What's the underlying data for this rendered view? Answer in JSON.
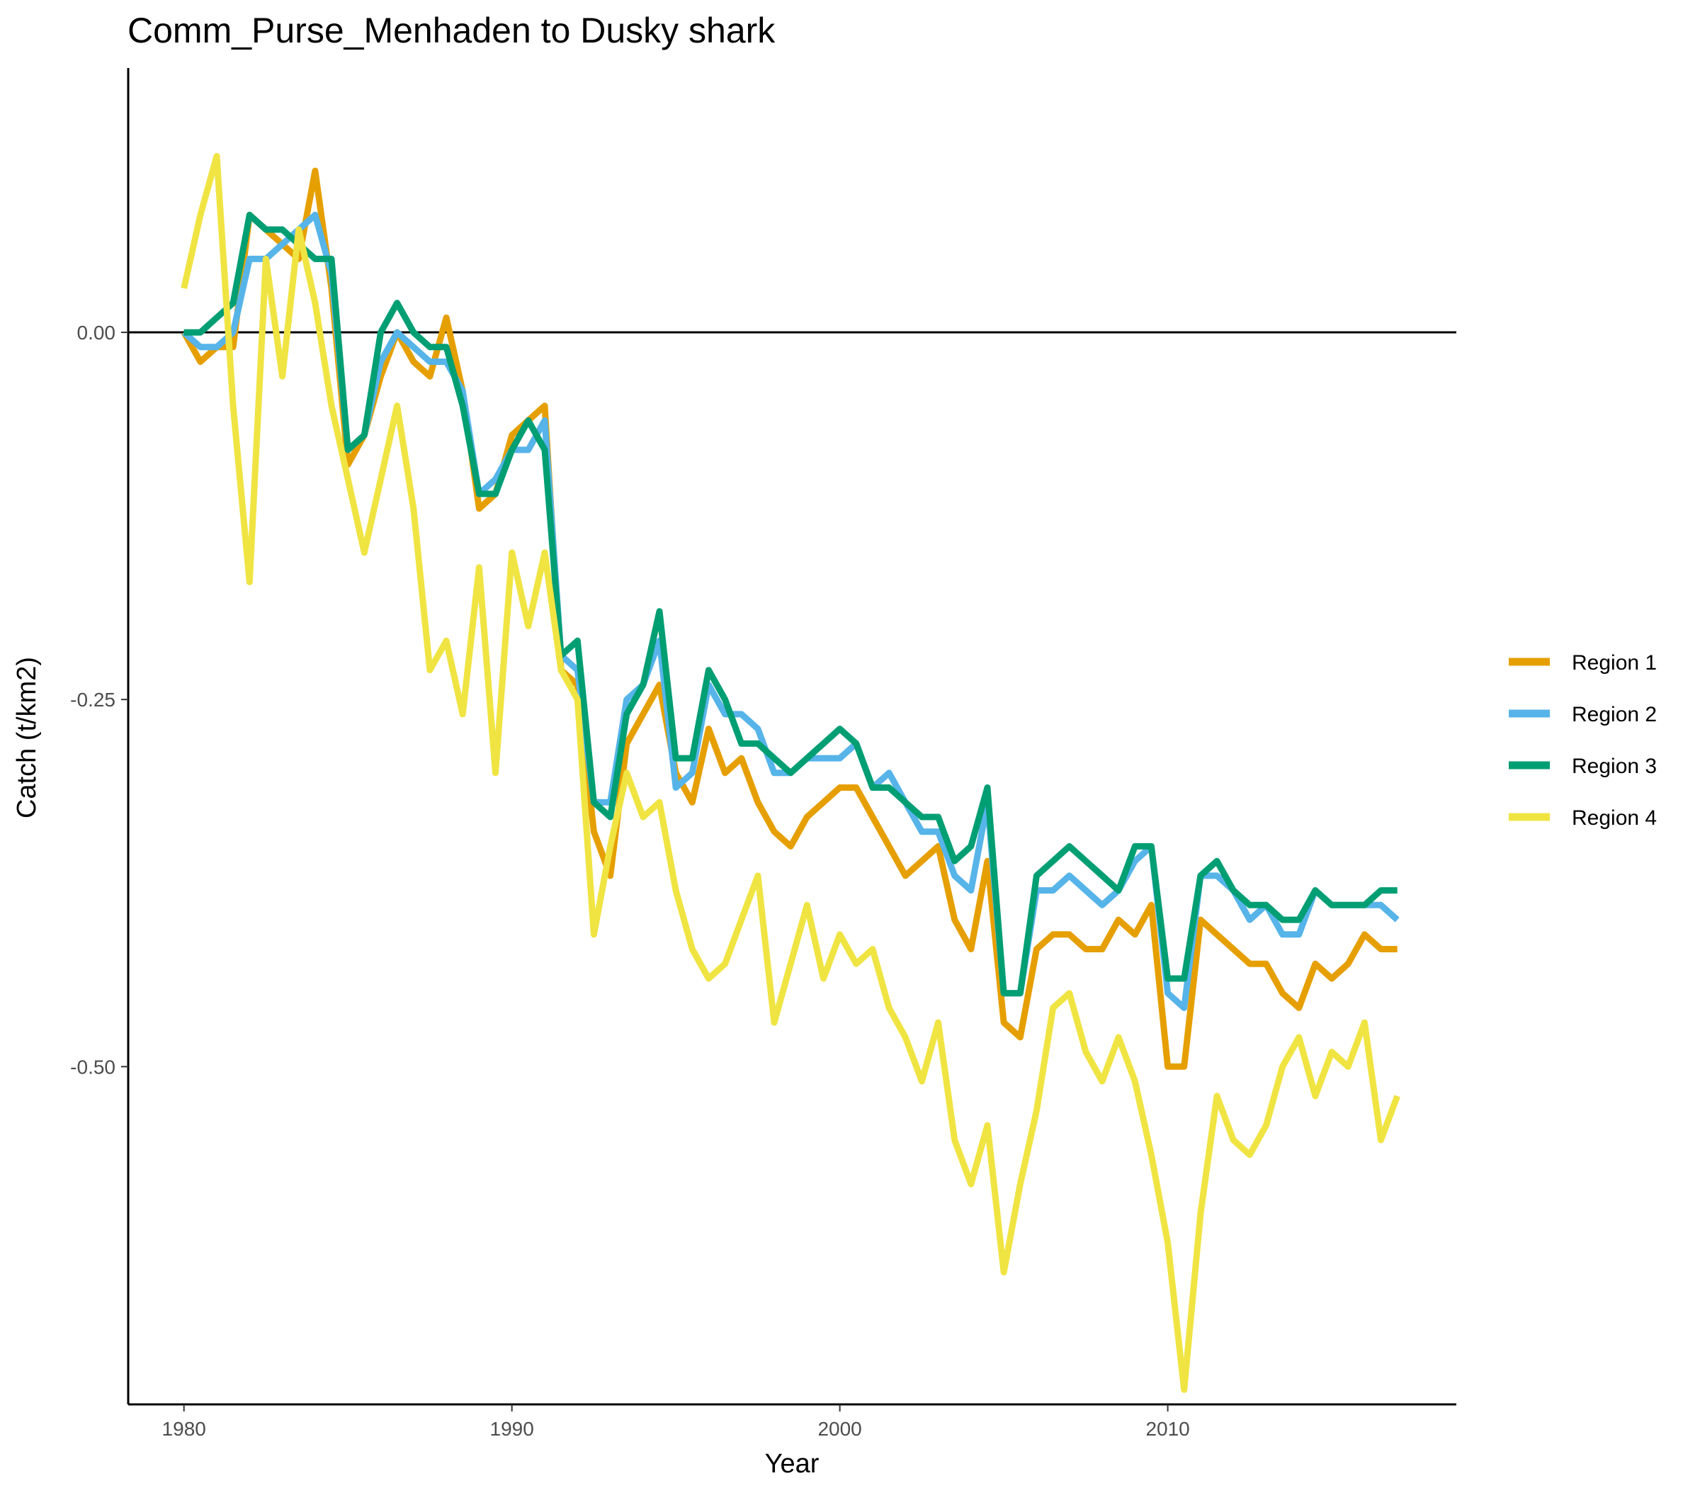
{
  "chart_data": {
    "type": "line",
    "title": "Comm_Purse_Menhaden to Dusky shark",
    "xlabel": "Year",
    "ylabel": "Catch (t/km2)",
    "xlim": [
      1978.3,
      2018.8
    ],
    "ylim": [
      -0.73,
      0.18
    ],
    "x_ticks": [
      1980,
      1990,
      2000,
      2010
    ],
    "x_tick_labels": [
      "1980",
      "1990",
      "2000",
      "2010"
    ],
    "y_ticks": [
      0,
      -0.25,
      -0.5
    ],
    "y_tick_labels": [
      "0.00",
      "-0.25",
      "-0.50"
    ],
    "reference_line_y": 0,
    "grid": false,
    "legend_position": "right",
    "series": [
      {
        "name": "Region 1",
        "color": "#E69F00",
        "x": [
          1980.0,
          1980.5,
          1981.0,
          1981.5,
          1982.0,
          1982.5,
          1983.0,
          1983.5,
          1984.0,
          1984.5,
          1985.0,
          1985.5,
          1986.0,
          1986.5,
          1987.0,
          1987.5,
          1988.0,
          1988.5,
          1989.0,
          1989.5,
          1990.0,
          1990.5,
          1991.0,
          1991.5,
          1992.0,
          1992.5,
          1993.0,
          1993.5,
          1994.0,
          1994.5,
          1995.0,
          1995.5,
          1996.0,
          1996.5,
          1997.0,
          1997.5,
          1998.0,
          1998.5,
          1999.0,
          1999.5,
          2000.0,
          2000.5,
          2001.0,
          2001.5,
          2002.0,
          2002.5,
          2003.0,
          2003.5,
          2004.0,
          2004.5,
          2005.0,
          2005.5,
          2006.0,
          2006.5,
          2007.0,
          2007.5,
          2008.0,
          2008.5,
          2009.0,
          2009.5,
          2010.0,
          2010.5,
          2011.0,
          2011.5,
          2012.0,
          2012.5,
          2013.0,
          2013.5,
          2014.0,
          2014.5,
          2015.0,
          2015.5,
          2016.0,
          2016.5,
          2017.0
        ],
        "y": [
          0.0,
          -0.02,
          -0.01,
          -0.01,
          0.08,
          0.07,
          0.06,
          0.05,
          0.11,
          0.03,
          -0.09,
          -0.07,
          -0.03,
          0.0,
          -0.02,
          -0.03,
          0.01,
          -0.04,
          -0.12,
          -0.11,
          -0.07,
          -0.06,
          -0.05,
          -0.23,
          -0.24,
          -0.34,
          -0.37,
          -0.28,
          -0.26,
          -0.24,
          -0.3,
          -0.32,
          -0.27,
          -0.3,
          -0.29,
          -0.32,
          -0.34,
          -0.35,
          -0.33,
          -0.32,
          -0.31,
          -0.31,
          -0.33,
          -0.35,
          -0.37,
          -0.36,
          -0.35,
          -0.4,
          -0.42,
          -0.36,
          -0.47,
          -0.48,
          -0.42,
          -0.41,
          -0.41,
          -0.42,
          -0.42,
          -0.4,
          -0.41,
          -0.39,
          -0.5,
          -0.5,
          -0.4,
          -0.41,
          -0.42,
          -0.43,
          -0.43,
          -0.45,
          -0.46,
          -0.43,
          -0.44,
          -0.43,
          -0.41,
          -0.42,
          -0.42
        ]
      },
      {
        "name": "Region 2",
        "color": "#56B4E9",
        "x": [
          1980.0,
          1980.5,
          1981.0,
          1981.5,
          1982.0,
          1982.5,
          1983.0,
          1983.5,
          1984.0,
          1984.5,
          1985.0,
          1985.5,
          1986.0,
          1986.5,
          1987.0,
          1987.5,
          1988.0,
          1988.5,
          1989.0,
          1989.5,
          1990.0,
          1990.5,
          1991.0,
          1991.5,
          1992.0,
          1992.5,
          1993.0,
          1993.5,
          1994.0,
          1994.5,
          1995.0,
          1995.5,
          1996.0,
          1996.5,
          1997.0,
          1997.5,
          1998.0,
          1998.5,
          1999.0,
          1999.5,
          2000.0,
          2000.5,
          2001.0,
          2001.5,
          2002.0,
          2002.5,
          2003.0,
          2003.5,
          2004.0,
          2004.5,
          2005.0,
          2005.5,
          2006.0,
          2006.5,
          2007.0,
          2007.5,
          2008.0,
          2008.5,
          2009.0,
          2009.5,
          2010.0,
          2010.5,
          2011.0,
          2011.5,
          2012.0,
          2012.5,
          2013.0,
          2013.5,
          2014.0,
          2014.5,
          2015.0,
          2015.5,
          2016.0,
          2016.5,
          2017.0
        ],
        "y": [
          0.0,
          -0.01,
          -0.01,
          0.0,
          0.05,
          0.05,
          0.06,
          0.07,
          0.08,
          0.04,
          -0.08,
          -0.07,
          -0.02,
          0.0,
          -0.01,
          -0.02,
          -0.02,
          -0.04,
          -0.11,
          -0.1,
          -0.08,
          -0.08,
          -0.06,
          -0.22,
          -0.23,
          -0.32,
          -0.32,
          -0.25,
          -0.24,
          -0.21,
          -0.31,
          -0.3,
          -0.24,
          -0.26,
          -0.26,
          -0.27,
          -0.3,
          -0.3,
          -0.29,
          -0.29,
          -0.29,
          -0.28,
          -0.31,
          -0.3,
          -0.32,
          -0.34,
          -0.34,
          -0.37,
          -0.38,
          -0.32,
          -0.45,
          -0.45,
          -0.38,
          -0.38,
          -0.37,
          -0.38,
          -0.39,
          -0.38,
          -0.36,
          -0.35,
          -0.45,
          -0.46,
          -0.37,
          -0.37,
          -0.38,
          -0.4,
          -0.39,
          -0.41,
          -0.41,
          -0.38,
          -0.39,
          -0.39,
          -0.39,
          -0.39,
          -0.4
        ]
      },
      {
        "name": "Region 3",
        "color": "#009E73",
        "x": [
          1980.0,
          1980.5,
          1981.0,
          1981.5,
          1982.0,
          1982.5,
          1983.0,
          1983.5,
          1984.0,
          1984.5,
          1985.0,
          1985.5,
          1986.0,
          1986.5,
          1987.0,
          1987.5,
          1988.0,
          1988.5,
          1989.0,
          1989.5,
          1990.0,
          1990.5,
          1991.0,
          1991.5,
          1992.0,
          1992.5,
          1993.0,
          1993.5,
          1994.0,
          1994.5,
          1995.0,
          1995.5,
          1996.0,
          1996.5,
          1997.0,
          1997.5,
          1998.0,
          1998.5,
          1999.0,
          1999.5,
          2000.0,
          2000.5,
          2001.0,
          2001.5,
          2002.0,
          2002.5,
          2003.0,
          2003.5,
          2004.0,
          2004.5,
          2005.0,
          2005.5,
          2006.0,
          2006.5,
          2007.0,
          2007.5,
          2008.0,
          2008.5,
          2009.0,
          2009.5,
          2010.0,
          2010.5,
          2011.0,
          2011.5,
          2012.0,
          2012.5,
          2013.0,
          2013.5,
          2014.0,
          2014.5,
          2015.0,
          2015.5,
          2016.0,
          2016.5,
          2017.0
        ],
        "y": [
          0.0,
          0.0,
          0.01,
          0.02,
          0.08,
          0.07,
          0.07,
          0.06,
          0.05,
          0.05,
          -0.08,
          -0.07,
          0.0,
          0.02,
          0.0,
          -0.01,
          -0.01,
          -0.05,
          -0.11,
          -0.11,
          -0.08,
          -0.06,
          -0.08,
          -0.22,
          -0.21,
          -0.32,
          -0.33,
          -0.26,
          -0.24,
          -0.19,
          -0.29,
          -0.29,
          -0.23,
          -0.25,
          -0.28,
          -0.28,
          -0.29,
          -0.3,
          -0.29,
          -0.28,
          -0.27,
          -0.28,
          -0.31,
          -0.31,
          -0.32,
          -0.33,
          -0.33,
          -0.36,
          -0.35,
          -0.31,
          -0.45,
          -0.45,
          -0.37,
          -0.36,
          -0.35,
          -0.36,
          -0.37,
          -0.38,
          -0.35,
          -0.35,
          -0.44,
          -0.44,
          -0.37,
          -0.36,
          -0.38,
          -0.39,
          -0.39,
          -0.4,
          -0.4,
          -0.38,
          -0.39,
          -0.39,
          -0.39,
          -0.38,
          -0.38
        ]
      },
      {
        "name": "Region 4",
        "color": "#F0E442",
        "x": [
          1980.0,
          1980.5,
          1981.0,
          1981.5,
          1982.0,
          1982.5,
          1983.0,
          1983.5,
          1984.0,
          1984.5,
          1985.0,
          1985.5,
          1986.0,
          1986.5,
          1987.0,
          1987.5,
          1988.0,
          1988.5,
          1989.0,
          1989.5,
          1990.0,
          1990.5,
          1991.0,
          1991.5,
          1992.0,
          1992.5,
          1993.0,
          1993.5,
          1994.0,
          1994.5,
          1995.0,
          1995.5,
          1996.0,
          1996.5,
          1997.0,
          1997.5,
          1998.0,
          1998.5,
          1999.0,
          1999.5,
          2000.0,
          2000.5,
          2001.0,
          2001.5,
          2002.0,
          2002.5,
          2003.0,
          2003.5,
          2004.0,
          2004.5,
          2005.0,
          2005.5,
          2006.0,
          2006.5,
          2007.0,
          2007.5,
          2008.0,
          2008.5,
          2009.0,
          2009.5,
          2010.0,
          2010.5,
          2011.0,
          2011.5,
          2012.0,
          2012.5,
          2013.0,
          2013.5,
          2014.0,
          2014.5,
          2015.0,
          2015.5,
          2016.0,
          2016.5,
          2017.0
        ],
        "y": [
          0.03,
          0.08,
          0.12,
          -0.05,
          -0.17,
          0.05,
          -0.03,
          0.07,
          0.02,
          -0.05,
          -0.1,
          -0.15,
          -0.1,
          -0.05,
          -0.12,
          -0.23,
          -0.21,
          -0.26,
          -0.16,
          -0.3,
          -0.15,
          -0.2,
          -0.15,
          -0.23,
          -0.25,
          -0.41,
          -0.35,
          -0.3,
          -0.33,
          -0.32,
          -0.38,
          -0.42,
          -0.44,
          -0.43,
          -0.4,
          -0.37,
          -0.47,
          -0.43,
          -0.39,
          -0.44,
          -0.41,
          -0.43,
          -0.42,
          -0.46,
          -0.48,
          -0.51,
          -0.47,
          -0.55,
          -0.58,
          -0.54,
          -0.64,
          -0.58,
          -0.53,
          -0.46,
          -0.45,
          -0.49,
          -0.51,
          -0.48,
          -0.51,
          -0.56,
          -0.62,
          -0.72,
          -0.6,
          -0.52,
          -0.55,
          -0.56,
          -0.54,
          -0.5,
          -0.48,
          -0.52,
          -0.49,
          -0.5,
          -0.47,
          -0.55,
          -0.52
        ]
      }
    ]
  }
}
